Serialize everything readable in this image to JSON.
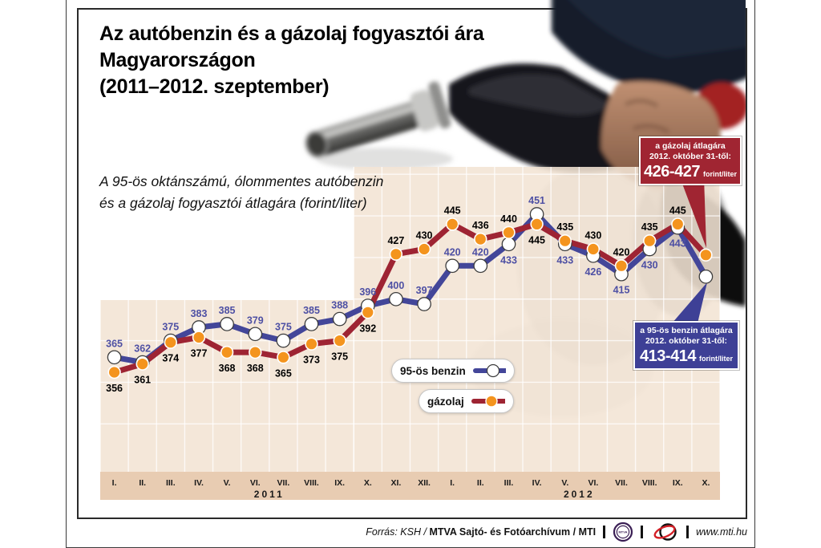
{
  "page": {
    "title_lines": [
      "Az autóbenzin és a gázolaj fogyasztói ára",
      "Magyarországon",
      "(2011–2012. szeptember)"
    ],
    "subtitle_lines": [
      "A 95-ös oktánszámú, ólommentes autóbenzin",
      "és a gázolaj fogyasztói átlagára (forint/liter)"
    ]
  },
  "chart_data": {
    "type": "line",
    "unit": "forint/liter",
    "x_groups": [
      {
        "year": "2011",
        "months": [
          "I.",
          "II.",
          "III.",
          "IV.",
          "V.",
          "VI.",
          "VII.",
          "VIII.",
          "IX.",
          "X.",
          "XI.",
          "XII."
        ]
      },
      {
        "year": "2012",
        "months": [
          "I.",
          "II.",
          "III.",
          "IV.",
          "V.",
          "VI.",
          "VII.",
          "VIII.",
          "IX.",
          "X."
        ]
      }
    ],
    "series": [
      {
        "name": "95-ös benzin",
        "line_color": "#434699",
        "marker_fill": "#ffffff",
        "marker_stroke": "#3c3c3c",
        "label_color": "#4e50a4",
        "values": [
          365,
          362,
          375,
          383,
          385,
          379,
          375,
          385,
          388,
          396,
          400,
          397,
          420,
          420,
          433,
          451,
          433,
          426,
          415,
          430,
          443
        ],
        "label_positions": [
          "above",
          "above",
          "above",
          "above",
          "above",
          "above",
          "above",
          "above",
          "above",
          "above",
          "above",
          "above",
          "above",
          "above",
          "below",
          "above",
          "below",
          "below",
          "below",
          "below",
          "below"
        ],
        "october_estimate": {
          "text": "413-414",
          "plot_value": 413.5
        }
      },
      {
        "name": "gázolaj",
        "line_color": "#9e2433",
        "marker_fill": "#f4941e",
        "marker_stroke": "#ffffff",
        "label_color": "#000000",
        "values": [
          356,
          361,
          374,
          377,
          368,
          368,
          365,
          373,
          375,
          392,
          427,
          430,
          445,
          436,
          440,
          445,
          435,
          430,
          420,
          435,
          445
        ],
        "label_positions": [
          "below",
          "below",
          "below",
          "below",
          "below",
          "below",
          "below",
          "below",
          "below",
          "below",
          "above",
          "above",
          "above",
          "above",
          "above",
          "below",
          "above",
          "above",
          "above",
          "above",
          "above"
        ],
        "october_estimate": {
          "text": "426-427",
          "plot_value": 426.5
        }
      }
    ],
    "ylim": [
      340,
      480
    ],
    "grid_values": [
      325,
      350,
      375,
      400,
      425,
      450,
      475
    ],
    "grid": "on",
    "legend_position": "inside-center"
  },
  "legend": {
    "items": [
      {
        "label": "95-ös benzin"
      },
      {
        "label": "gázolaj"
      }
    ]
  },
  "callouts": {
    "gazolaj": {
      "line1": "a gázolaj átlagára",
      "line2": "2012. október 31-től:",
      "value": "426-427",
      "unit": "forint/liter",
      "color": "#a02532"
    },
    "benzin": {
      "line1": "a 95-ös benzin átlagára",
      "line2": "2012. október 31-től:",
      "value": "413-414",
      "unit": "forint/liter",
      "color": "#3e4096"
    }
  },
  "footer": {
    "source_italic": "Forrás: KSH /",
    "source_bold": "MTVA Sajtó- és Fotóarchívum / MTI",
    "website": "www.mti.hu",
    "mtva_logo_text": "MTVA"
  }
}
